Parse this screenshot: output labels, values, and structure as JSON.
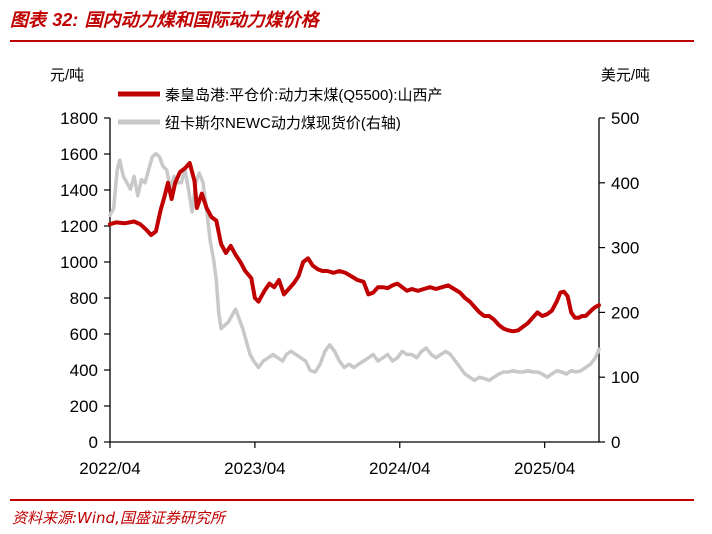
{
  "header": {
    "figure_prefix": "图表",
    "figure_number": "32:",
    "figure_title": "国内动力煤和国际动力煤价格"
  },
  "footer": {
    "source": "资料来源:Wind,国盛证券研究所"
  },
  "colors": {
    "accent": "#c00000",
    "series1": "#c00000",
    "series2": "#c8c8c8",
    "axis": "#000000"
  },
  "chart_data": {
    "type": "line",
    "left_unit": "元/吨",
    "right_unit": "美元/吨",
    "y_left": {
      "min": 0,
      "max": 1800,
      "ticks": [
        0,
        200,
        400,
        600,
        800,
        1000,
        1200,
        1400,
        1600,
        1800
      ]
    },
    "y_right": {
      "min": 0,
      "max": 500,
      "ticks": [
        0,
        100,
        200,
        300,
        400,
        500
      ]
    },
    "x_ticks": [
      "2022/04",
      "2023/04",
      "2024/04",
      "2025/04"
    ],
    "x_range_months": [
      0,
      40.5
    ],
    "series": [
      {
        "name": "秦皇岛港:平仓价:动力末煤(Q5500):山西产",
        "axis": "left",
        "points": [
          [
            0,
            1210
          ],
          [
            0.5,
            1220
          ],
          [
            1.2,
            1215
          ],
          [
            2,
            1225
          ],
          [
            2.5,
            1210
          ],
          [
            3,
            1180
          ],
          [
            3.4,
            1150
          ],
          [
            3.8,
            1170
          ],
          [
            4.2,
            1290
          ],
          [
            4.5,
            1360
          ],
          [
            4.8,
            1440
          ],
          [
            5.1,
            1350
          ],
          [
            5.4,
            1440
          ],
          [
            5.8,
            1500
          ],
          [
            6.2,
            1520
          ],
          [
            6.6,
            1550
          ],
          [
            7,
            1450
          ],
          [
            7.2,
            1300
          ],
          [
            7.6,
            1380
          ],
          [
            8,
            1300
          ],
          [
            8.4,
            1250
          ],
          [
            8.8,
            1230
          ],
          [
            9.2,
            1100
          ],
          [
            9.6,
            1050
          ],
          [
            10,
            1090
          ],
          [
            10.4,
            1040
          ],
          [
            10.8,
            1000
          ],
          [
            11.2,
            950
          ],
          [
            11.7,
            910
          ],
          [
            12,
            800
          ],
          [
            12.3,
            780
          ],
          [
            12.8,
            840
          ],
          [
            13.2,
            880
          ],
          [
            13.6,
            860
          ],
          [
            14,
            900
          ],
          [
            14.4,
            820
          ],
          [
            14.8,
            850
          ],
          [
            15.2,
            880
          ],
          [
            15.6,
            920
          ],
          [
            16,
            1000
          ],
          [
            16.4,
            1020
          ],
          [
            16.8,
            980
          ],
          [
            17.2,
            960
          ],
          [
            17.6,
            950
          ],
          [
            18,
            950
          ],
          [
            18.5,
            940
          ],
          [
            19,
            950
          ],
          [
            19.5,
            940
          ],
          [
            20,
            920
          ],
          [
            20.5,
            900
          ],
          [
            21,
            890
          ],
          [
            21.4,
            820
          ],
          [
            21.8,
            830
          ],
          [
            22.2,
            860
          ],
          [
            22.6,
            860
          ],
          [
            23,
            855
          ],
          [
            23.4,
            870
          ],
          [
            23.8,
            880
          ],
          [
            24.2,
            860
          ],
          [
            24.6,
            840
          ],
          [
            25,
            850
          ],
          [
            25.5,
            840
          ],
          [
            26,
            850
          ],
          [
            26.5,
            860
          ],
          [
            27,
            850
          ],
          [
            27.5,
            860
          ],
          [
            28,
            870
          ],
          [
            28.5,
            850
          ],
          [
            29,
            830
          ],
          [
            29.4,
            800
          ],
          [
            29.8,
            780
          ],
          [
            30.2,
            750
          ],
          [
            30.6,
            720
          ],
          [
            31,
            700
          ],
          [
            31.4,
            700
          ],
          [
            31.8,
            680
          ],
          [
            32.2,
            650
          ],
          [
            32.6,
            630
          ],
          [
            33,
            620
          ],
          [
            33.4,
            615
          ],
          [
            33.8,
            620
          ],
          [
            34.2,
            640
          ],
          [
            34.6,
            660
          ],
          [
            35,
            690
          ],
          [
            35.4,
            720
          ],
          [
            35.8,
            700
          ],
          [
            36.2,
            710
          ],
          [
            36.6,
            730
          ],
          [
            37,
            780
          ],
          [
            37.3,
            830
          ],
          [
            37.6,
            835
          ],
          [
            37.9,
            810
          ],
          [
            38.2,
            720
          ],
          [
            38.5,
            690
          ],
          [
            38.8,
            690
          ],
          [
            39.1,
            700
          ],
          [
            39.4,
            700
          ],
          [
            39.7,
            720
          ],
          [
            40,
            740
          ],
          [
            40.2,
            750
          ],
          [
            40.5,
            760
          ]
        ]
      },
      {
        "name": "纽卡斯尔NEWC动力煤现货价(右轴)",
        "axis": "right",
        "points": [
          [
            0,
            350
          ],
          [
            0.3,
            360
          ],
          [
            0.6,
            420
          ],
          [
            0.8,
            435
          ],
          [
            1.1,
            410
          ],
          [
            1.4,
            400
          ],
          [
            1.7,
            390
          ],
          [
            2,
            410
          ],
          [
            2.3,
            380
          ],
          [
            2.6,
            405
          ],
          [
            2.9,
            400
          ],
          [
            3.2,
            420
          ],
          [
            3.5,
            440
          ],
          [
            3.8,
            445
          ],
          [
            4.1,
            440
          ],
          [
            4.4,
            425
          ],
          [
            4.7,
            420
          ],
          [
            5,
            390
          ],
          [
            5.3,
            410
          ],
          [
            5.6,
            400
          ],
          [
            5.9,
            400
          ],
          [
            6.2,
            420
          ],
          [
            6.5,
            390
          ],
          [
            6.8,
            355
          ],
          [
            7.1,
            400
          ],
          [
            7.4,
            415
          ],
          [
            7.7,
            400
          ],
          [
            8,
            360
          ],
          [
            8.3,
            310
          ],
          [
            8.6,
            280
          ],
          [
            8.8,
            250
          ],
          [
            9,
            200
          ],
          [
            9.2,
            175
          ],
          [
            9.5,
            180
          ],
          [
            9.8,
            185
          ],
          [
            10.1,
            195
          ],
          [
            10.4,
            205
          ],
          [
            10.7,
            190
          ],
          [
            11,
            175
          ],
          [
            11.3,
            155
          ],
          [
            11.6,
            135
          ],
          [
            11.9,
            125
          ],
          [
            12.3,
            115
          ],
          [
            12.7,
            125
          ],
          [
            13.1,
            130
          ],
          [
            13.5,
            135
          ],
          [
            13.9,
            130
          ],
          [
            14.3,
            125
          ],
          [
            14.6,
            135
          ],
          [
            15,
            140
          ],
          [
            15.4,
            135
          ],
          [
            15.8,
            130
          ],
          [
            16.2,
            125
          ],
          [
            16.6,
            110
          ],
          [
            17,
            108
          ],
          [
            17.4,
            120
          ],
          [
            17.8,
            140
          ],
          [
            18.2,
            150
          ],
          [
            18.6,
            140
          ],
          [
            19,
            125
          ],
          [
            19.4,
            115
          ],
          [
            19.8,
            120
          ],
          [
            20.2,
            115
          ],
          [
            20.6,
            120
          ],
          [
            21,
            125
          ],
          [
            21.4,
            130
          ],
          [
            21.8,
            135
          ],
          [
            22.2,
            125
          ],
          [
            22.6,
            130
          ],
          [
            23,
            135
          ],
          [
            23.4,
            125
          ],
          [
            23.8,
            130
          ],
          [
            24.2,
            140
          ],
          [
            24.6,
            135
          ],
          [
            25,
            135
          ],
          [
            25.4,
            130
          ],
          [
            25.8,
            140
          ],
          [
            26.2,
            145
          ],
          [
            26.6,
            135
          ],
          [
            27,
            130
          ],
          [
            27.4,
            135
          ],
          [
            27.8,
            140
          ],
          [
            28.2,
            135
          ],
          [
            28.6,
            125
          ],
          [
            29,
            115
          ],
          [
            29.4,
            105
          ],
          [
            29.8,
            100
          ],
          [
            30.2,
            95
          ],
          [
            30.6,
            100
          ],
          [
            31,
            98
          ],
          [
            31.4,
            95
          ],
          [
            31.8,
            100
          ],
          [
            32.2,
            105
          ],
          [
            32.6,
            108
          ],
          [
            33,
            108
          ],
          [
            33.4,
            110
          ],
          [
            33.8,
            108
          ],
          [
            34.2,
            108
          ],
          [
            34.6,
            110
          ],
          [
            35,
            108
          ],
          [
            35.4,
            108
          ],
          [
            35.8,
            105
          ],
          [
            36.2,
            100
          ],
          [
            36.6,
            105
          ],
          [
            37,
            110
          ],
          [
            37.4,
            108
          ],
          [
            37.8,
            105
          ],
          [
            38.2,
            110
          ],
          [
            38.6,
            108
          ],
          [
            39,
            110
          ],
          [
            39.4,
            115
          ],
          [
            39.8,
            120
          ],
          [
            40.2,
            130
          ],
          [
            40.5,
            143
          ]
        ]
      }
    ]
  }
}
